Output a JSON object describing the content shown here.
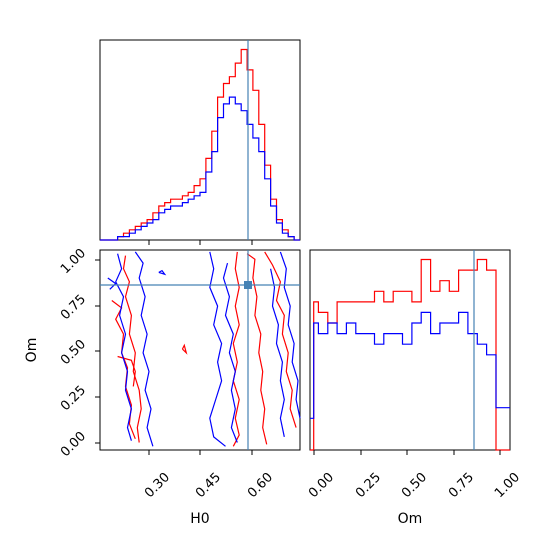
{
  "chart_data": [
    {
      "type": "histogram",
      "panel": "H0 marginal",
      "xlim": [
        0.18,
        0.69
      ],
      "truth": 0.585,
      "bin_edges": [
        0.18,
        0.195,
        0.21,
        0.225,
        0.24,
        0.255,
        0.27,
        0.285,
        0.3,
        0.315,
        0.33,
        0.345,
        0.36,
        0.375,
        0.39,
        0.405,
        0.42,
        0.435,
        0.45,
        0.465,
        0.48,
        0.495,
        0.51,
        0.525,
        0.54,
        0.555,
        0.57,
        0.585,
        0.6,
        0.615,
        0.63,
        0.645,
        0.66,
        0.675,
        0.69
      ],
      "series": [
        {
          "color": "#ff0000",
          "values": [
            0,
            0,
            0,
            1,
            2,
            3,
            4,
            5,
            6,
            8,
            10,
            11,
            12,
            12,
            13,
            14,
            16,
            18,
            24,
            32,
            42,
            46,
            48,
            52,
            56,
            50,
            44,
            34,
            22,
            12,
            6,
            3,
            1,
            0
          ]
        },
        {
          "color": "#0000ff",
          "values": [
            0,
            0,
            0,
            1,
            1,
            2,
            3,
            4,
            5,
            6,
            8,
            9,
            10,
            10,
            11,
            12,
            13,
            14,
            20,
            26,
            36,
            40,
            42,
            40,
            38,
            34,
            30,
            26,
            18,
            10,
            5,
            2,
            1,
            0
          ]
        }
      ]
    },
    {
      "type": "contour",
      "panel": "H0 vs Om",
      "xlabel": "H0",
      "ylabel": "Om",
      "xlim": [
        0.18,
        0.69
      ],
      "ylim": [
        -0.02,
        1.05
      ],
      "xticks": [
        "0.30",
        "0.45",
        "0.60"
      ],
      "xtick_values": [
        0.3,
        0.45,
        0.6
      ],
      "yticks": [
        "0.00",
        "0.25",
        "0.50",
        "0.75",
        "1.00"
      ],
      "ytick_values": [
        0.0,
        0.25,
        0.5,
        0.75,
        1.0
      ],
      "truth": [
        0.585,
        0.86
      ],
      "series": [
        {
          "color": "#ff0000",
          "paths": [
            [
              [
                0.245,
                1.02
              ],
              [
                0.24,
                0.95
              ],
              [
                0.255,
                0.88
              ],
              [
                0.245,
                0.8
              ],
              [
                0.26,
                0.7
              ],
              [
                0.255,
                0.6
              ],
              [
                0.27,
                0.5
              ],
              [
                0.265,
                0.4
              ],
              [
                0.28,
                0.3
              ],
              [
                0.285,
                0.2
              ],
              [
                0.275,
                0.1
              ],
              [
                0.28,
                0.02
              ]
            ],
            [
              [
                0.21,
                0.78
              ],
              [
                0.235,
                0.74
              ],
              [
                0.22,
                0.68
              ],
              [
                0.24,
                0.6
              ],
              [
                0.235,
                0.5
              ],
              [
                0.25,
                0.42
              ],
              [
                0.245,
                0.32
              ],
              [
                0.26,
                0.22
              ],
              [
                0.255,
                0.12
              ],
              [
                0.27,
                0.04
              ]
            ],
            [
              [
                0.225,
                0.48
              ],
              [
                0.26,
                0.46
              ],
              [
                0.27,
                0.4
              ],
              [
                0.265,
                0.32
              ]
            ],
            [
              [
                0.39,
                0.52
              ],
              [
                0.4,
                0.5
              ],
              [
                0.395,
                0.54
              ],
              [
                0.39,
                0.52
              ]
            ],
            [
              [
                0.53,
                1.04
              ],
              [
                0.525,
                0.95
              ],
              [
                0.535,
                0.85
              ],
              [
                0.525,
                0.75
              ],
              [
                0.535,
                0.65
              ],
              [
                0.52,
                0.55
              ],
              [
                0.53,
                0.45
              ],
              [
                0.52,
                0.35
              ],
              [
                0.535,
                0.25
              ],
              [
                0.525,
                0.15
              ],
              [
                0.535,
                0.06
              ],
              [
                0.52,
                0.0
              ]
            ],
            [
              [
                0.555,
                1.03
              ],
              [
                0.575,
                1.0
              ],
              [
                0.57,
                0.9
              ],
              [
                0.58,
                0.8
              ],
              [
                0.575,
                0.7
              ],
              [
                0.59,
                0.6
              ],
              [
                0.585,
                0.5
              ],
              [
                0.595,
                0.4
              ],
              [
                0.59,
                0.3
              ],
              [
                0.6,
                0.2
              ],
              [
                0.595,
                0.1
              ],
              [
                0.605,
                0.01
              ]
            ],
            [
              [
                0.6,
                1.04
              ],
              [
                0.62,
                0.97
              ],
              [
                0.64,
                0.88
              ],
              [
                0.63,
                0.78
              ],
              [
                0.65,
                0.7
              ],
              [
                0.645,
                0.6
              ],
              [
                0.66,
                0.5
              ],
              [
                0.655,
                0.4
              ],
              [
                0.67,
                0.3
              ],
              [
                0.665,
                0.2
              ],
              [
                0.68,
                0.1
              ]
            ]
          ]
        },
        {
          "color": "#0000ff",
          "paths": [
            [
              [
                0.225,
                1.03
              ],
              [
                0.235,
                0.95
              ],
              [
                0.22,
                0.88
              ],
              [
                0.24,
                0.8
              ],
              [
                0.23,
                0.7
              ],
              [
                0.245,
                0.6
              ],
              [
                0.235,
                0.5
              ],
              [
                0.25,
                0.4
              ],
              [
                0.245,
                0.3
              ],
              [
                0.26,
                0.2
              ],
              [
                0.25,
                0.1
              ],
              [
                0.26,
                0.03
              ]
            ],
            [
              [
                0.2,
                0.9
              ],
              [
                0.22,
                0.87
              ],
              [
                0.205,
                0.84
              ]
            ],
            [
              [
                0.27,
                1.04
              ],
              [
                0.29,
                0.98
              ],
              [
                0.28,
                0.9
              ],
              [
                0.295,
                0.8
              ],
              [
                0.285,
                0.7
              ],
              [
                0.3,
                0.6
              ],
              [
                0.29,
                0.5
              ],
              [
                0.305,
                0.4
              ],
              [
                0.295,
                0.3
              ],
              [
                0.31,
                0.2
              ],
              [
                0.3,
                0.1
              ],
              [
                0.315,
                0.0
              ]
            ],
            [
              [
                0.33,
                0.93
              ],
              [
                0.345,
                0.92
              ],
              [
                0.338,
                0.94
              ],
              [
                0.33,
                0.93
              ]
            ],
            [
              [
                0.46,
                1.04
              ],
              [
                0.47,
                0.95
              ],
              [
                0.46,
                0.85
              ],
              [
                0.48,
                0.75
              ],
              [
                0.47,
                0.65
              ],
              [
                0.49,
                0.55
              ],
              [
                0.48,
                0.45
              ],
              [
                0.49,
                0.35
              ],
              [
                0.475,
                0.25
              ],
              [
                0.46,
                0.15
              ],
              [
                0.47,
                0.05
              ],
              [
                0.5,
                0.0
              ]
            ],
            [
              [
                0.505,
                0.98
              ],
              [
                0.495,
                0.9
              ],
              [
                0.51,
                0.8
              ],
              [
                0.5,
                0.7
              ],
              [
                0.52,
                0.6
              ],
              [
                0.51,
                0.5
              ],
              [
                0.525,
                0.4
              ],
              [
                0.515,
                0.3
              ],
              [
                0.525,
                0.2
              ],
              [
                0.515,
                0.1
              ],
              [
                0.53,
                0.02
              ]
            ],
            [
              [
                0.64,
                1.04
              ],
              [
                0.655,
                0.95
              ],
              [
                0.65,
                0.85
              ],
              [
                0.665,
                0.75
              ],
              [
                0.66,
                0.65
              ],
              [
                0.675,
                0.55
              ],
              [
                0.67,
                0.45
              ],
              [
                0.685,
                0.35
              ],
              [
                0.68,
                0.25
              ],
              [
                0.69,
                0.15
              ]
            ],
            [
              [
                0.615,
                0.95
              ],
              [
                0.625,
                0.85
              ],
              [
                0.62,
                0.75
              ],
              [
                0.635,
                0.65
              ],
              [
                0.63,
                0.55
              ],
              [
                0.645,
                0.45
              ],
              [
                0.64,
                0.35
              ],
              [
                0.65,
                0.25
              ],
              [
                0.64,
                0.15
              ],
              [
                0.65,
                0.05
              ]
            ]
          ]
        }
      ]
    },
    {
      "type": "histogram",
      "panel": "Om marginal",
      "xlabel": "Om",
      "xlim": [
        -0.02,
        1.05
      ],
      "xticks": [
        "0.00",
        "0.25",
        "0.50",
        "0.75",
        "1.00"
      ],
      "xtick_values": [
        0.0,
        0.25,
        0.5,
        0.75,
        1.0
      ],
      "truth": 0.86,
      "bin_edges": [
        -0.02,
        0.0,
        0.025,
        0.075,
        0.125,
        0.175,
        0.225,
        0.275,
        0.325,
        0.375,
        0.425,
        0.475,
        0.525,
        0.575,
        0.625,
        0.675,
        0.725,
        0.775,
        0.825,
        0.875,
        0.925,
        0.975,
        1.025,
        1.05
      ],
      "series": [
        {
          "color": "#ff0000",
          "values": [
            0,
            14,
            13,
            12,
            14,
            14,
            14,
            14,
            15,
            14,
            15,
            15,
            14,
            18,
            15,
            16,
            15,
            17,
            17,
            18,
            17,
            0,
            0
          ]
        },
        {
          "color": "#0000ff",
          "values": [
            3,
            12,
            11,
            12,
            11,
            12,
            11,
            11,
            10,
            11,
            11,
            10,
            12,
            13,
            11,
            12,
            12,
            13,
            11,
            10,
            9,
            4,
            4
          ]
        }
      ]
    }
  ]
}
